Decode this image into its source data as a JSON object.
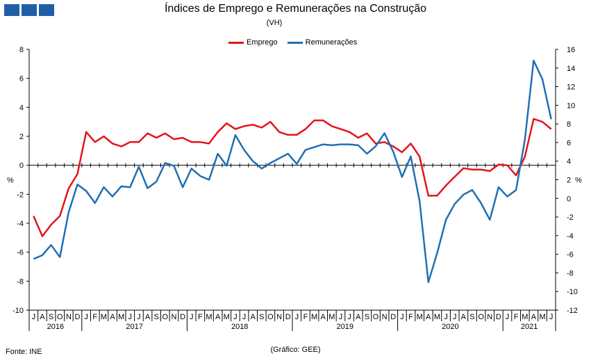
{
  "header": {
    "logo_icon": "blue-squares-logo",
    "title": "Índices de Emprego e Remunerações na Construção",
    "subtitle": "(VH)"
  },
  "footer": {
    "source": "Fonte: INE",
    "credit": "(Gráfico: GEE)"
  },
  "colors": {
    "emprego": "#e3141a",
    "remuneracoes": "#1f6fb5",
    "logo": "#1f5fa6"
  },
  "chart_data": {
    "type": "line",
    "title": "Índices de Emprego e Remunerações na Construção",
    "subtitle": "(VH)",
    "legend_position": "top-center",
    "grid": false,
    "y_left": {
      "label": "%",
      "range": [
        -10,
        8
      ],
      "ticks": [
        8,
        6,
        4,
        2,
        0,
        -2,
        -4,
        -6,
        -8,
        -10
      ]
    },
    "y_right": {
      "label": "%",
      "range": [
        -12,
        16
      ],
      "ticks": [
        16,
        14,
        12,
        10,
        8,
        6,
        4,
        2,
        0,
        -2,
        -4,
        -6,
        -8,
        -10,
        -12
      ]
    },
    "categories": [
      "J",
      "A",
      "S",
      "O",
      "N",
      "D",
      "J",
      "F",
      "M",
      "A",
      "M",
      "J",
      "J",
      "A",
      "S",
      "O",
      "N",
      "D",
      "J",
      "F",
      "M",
      "A",
      "M",
      "J",
      "J",
      "A",
      "S",
      "O",
      "N",
      "D",
      "J",
      "F",
      "M",
      "A",
      "M",
      "J",
      "J",
      "A",
      "S",
      "O",
      "N",
      "D",
      "J",
      "F",
      "M",
      "A",
      "M",
      "J",
      "J",
      "A",
      "S",
      "O",
      "N",
      "D",
      "J",
      "F",
      "M",
      "A",
      "M",
      "J"
    ],
    "years": [
      {
        "label": "2016",
        "start": 0,
        "end": 5
      },
      {
        "label": "2017",
        "start": 6,
        "end": 17
      },
      {
        "label": "2018",
        "start": 18,
        "end": 29
      },
      {
        "label": "2019",
        "start": 30,
        "end": 41
      },
      {
        "label": "2020",
        "start": 42,
        "end": 53
      },
      {
        "label": "2021",
        "start": 54,
        "end": 59
      }
    ],
    "series": [
      {
        "name": "Emprego",
        "axis": "left",
        "values": [
          -3.5,
          -4.9,
          -4.1,
          -3.5,
          -1.6,
          -0.6,
          2.3,
          1.6,
          2.0,
          1.5,
          1.3,
          1.6,
          1.6,
          2.2,
          1.9,
          2.2,
          1.8,
          1.9,
          1.6,
          1.6,
          1.5,
          2.3,
          2.9,
          2.5,
          2.7,
          2.8,
          2.6,
          3.0,
          2.3,
          2.1,
          2.1,
          2.5,
          3.1,
          3.1,
          2.7,
          2.5,
          2.3,
          1.9,
          2.2,
          1.5,
          1.6,
          1.3,
          0.9,
          1.5,
          0.6,
          -2.1,
          -2.1,
          -1.4,
          -0.8,
          -0.2,
          -0.3,
          -0.3,
          -0.4,
          0.05,
          0.0,
          -0.7,
          0.6,
          3.2,
          3.0,
          2.5
        ]
      },
      {
        "name": "Remunerações",
        "axis": "right",
        "values": [
          -6.5,
          -6.1,
          -5.0,
          -6.3,
          -1.5,
          1.5,
          0.8,
          -0.5,
          1.2,
          0.2,
          1.3,
          1.2,
          3.4,
          1.1,
          1.8,
          3.8,
          3.5,
          1.2,
          3.2,
          2.4,
          2.0,
          4.8,
          3.5,
          6.8,
          5.2,
          4.0,
          3.2,
          3.8,
          4.3,
          4.8,
          3.7,
          5.2,
          5.5,
          5.8,
          5.7,
          5.8,
          5.8,
          5.7,
          4.8,
          5.6,
          7.0,
          5.0,
          2.3,
          4.5,
          -0.3,
          -9.0,
          -5.9,
          -2.3,
          -0.6,
          0.4,
          0.9,
          -0.5,
          -2.3,
          1.2,
          0.2,
          0.9,
          6.3,
          14.8,
          12.8,
          8.5
        ]
      }
    ]
  }
}
